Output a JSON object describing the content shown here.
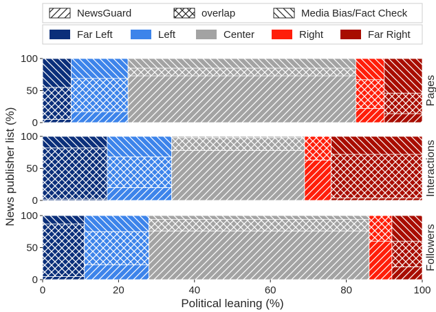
{
  "chart_data": {
    "type": "bar",
    "orientation": "horizontal-stacked",
    "xlabel": "Political leaning (%)",
    "ylabel": "News publisher list (%)",
    "xlim": [
      0,
      100
    ],
    "ylim": [
      0,
      100
    ],
    "xticks": [
      "0",
      "20",
      "40",
      "60",
      "80",
      "100"
    ],
    "yticks": [
      "0",
      "50",
      "100"
    ],
    "grid": false,
    "legend_position": "top",
    "source_legend": [
      {
        "name": "NewsGuard",
        "pattern": "forward-hatch"
      },
      {
        "name": "overlap",
        "pattern": "cross-hatch"
      },
      {
        "name": "Media Bias/Fact Check",
        "pattern": "back-hatch"
      }
    ],
    "categories": [
      "Far Left",
      "Left",
      "Center",
      "Right",
      "Far Right"
    ],
    "colors": {
      "Far Left": "#0b2f7a",
      "Left": "#3d84ea",
      "Center": "#a3a3a3",
      "Right": "#ff1e0a",
      "Far Right": "#a80d00"
    },
    "panels": [
      {
        "name": "Pages",
        "leaning_widths": [
          7.5,
          15,
          60,
          7.5,
          10
        ],
        "source_breakdown": [
          {
            "leaning": "Far Left",
            "NewsGuard": 5,
            "overlap": 50,
            "Media Bias/Fact Check": 45
          },
          {
            "leaning": "Left",
            "NewsGuard": 17,
            "overlap": 52,
            "Media Bias/Fact Check": 31
          },
          {
            "leaning": "Center",
            "NewsGuard": 73,
            "overlap": 12,
            "Media Bias/Fact Check": 15
          },
          {
            "leaning": "Right",
            "NewsGuard": 22,
            "overlap": 45,
            "Media Bias/Fact Check": 33
          },
          {
            "leaning": "Far Right",
            "NewsGuard": 14,
            "overlap": 32,
            "Media Bias/Fact Check": 54
          }
        ]
      },
      {
        "name": "Interactions",
        "leaning_widths": [
          17,
          17,
          35,
          7,
          24
        ],
        "source_breakdown": [
          {
            "leaning": "Far Left",
            "NewsGuard": 2,
            "overlap": 80,
            "Media Bias/Fact Check": 18
          },
          {
            "leaning": "Left",
            "NewsGuard": 20,
            "overlap": 48,
            "Media Bias/Fact Check": 32
          },
          {
            "leaning": "Center",
            "NewsGuard": 78,
            "overlap": 20,
            "Media Bias/Fact Check": 2
          },
          {
            "leaning": "Right",
            "NewsGuard": 63,
            "overlap": 37,
            "Media Bias/Fact Check": 0
          },
          {
            "leaning": "Far Right",
            "NewsGuard": 4,
            "overlap": 68,
            "Media Bias/Fact Check": 28
          }
        ]
      },
      {
        "name": "Followers",
        "leaning_widths": [
          11,
          17,
          58,
          6,
          8
        ],
        "source_breakdown": [
          {
            "leaning": "Far Left",
            "NewsGuard": 5,
            "overlap": 82,
            "Media Bias/Fact Check": 13
          },
          {
            "leaning": "Left",
            "NewsGuard": 23,
            "overlap": 52,
            "Media Bias/Fact Check": 25
          },
          {
            "leaning": "Center",
            "NewsGuard": 76,
            "overlap": 18,
            "Media Bias/Fact Check": 6
          },
          {
            "leaning": "Right",
            "NewsGuard": 60,
            "overlap": 40,
            "Media Bias/Fact Check": 0
          },
          {
            "leaning": "Far Right",
            "NewsGuard": 20,
            "overlap": 40,
            "Media Bias/Fact Check": 40
          }
        ]
      }
    ]
  }
}
